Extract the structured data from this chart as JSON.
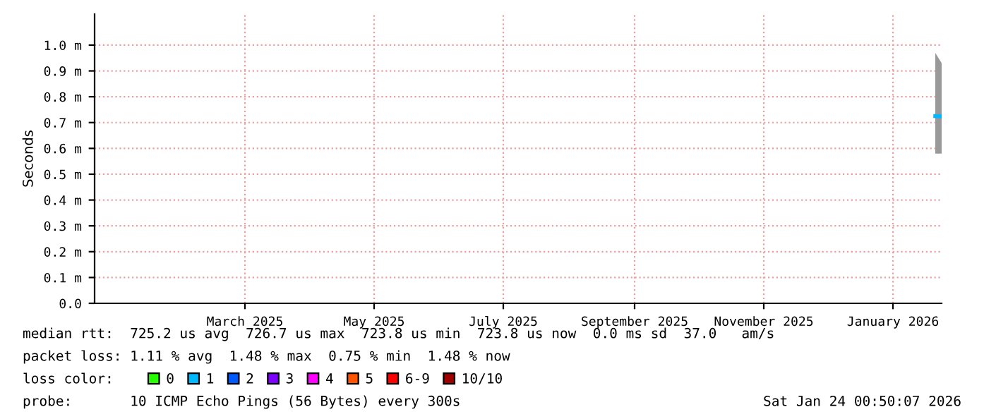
{
  "chart_data": {
    "type": "line",
    "ylabel": "Seconds",
    "xlim": [
      "2024-12-20",
      "2026-01-24"
    ],
    "xticks": [
      {
        "value": "2025-03-01",
        "label": "March 2025"
      },
      {
        "value": "2025-05-01",
        "label": "May 2025"
      },
      {
        "value": "2025-07-01",
        "label": "July 2025"
      },
      {
        "value": "2025-09-01",
        "label": "September 2025"
      },
      {
        "value": "2025-11-01",
        "label": "November 2025"
      },
      {
        "value": "2026-01-01",
        "label": "January 2026"
      }
    ],
    "ylim": [
      0,
      1.12
    ],
    "yticks": [
      {
        "value": 0,
        "label": "0.0"
      },
      {
        "value": 0.1,
        "label": "0.1 m"
      },
      {
        "value": 0.2,
        "label": "0.2 m"
      },
      {
        "value": 0.3,
        "label": "0.3 m"
      },
      {
        "value": 0.4,
        "label": "0.4 m"
      },
      {
        "value": 0.5,
        "label": "0.5 m"
      },
      {
        "value": 0.6,
        "label": "0.6 m"
      },
      {
        "value": 0.7,
        "label": "0.7 m"
      },
      {
        "value": 0.8,
        "label": "0.8 m"
      },
      {
        "value": 0.9,
        "label": "0.9 m"
      },
      {
        "value": 1.0,
        "label": "1.0 m"
      }
    ],
    "grid": true,
    "legend": "bottom",
    "legend_title": "loss color:",
    "series": [
      {
        "color": "#00b8ff",
        "x": [
          "2026-01-21",
          "2026-01-24"
        ],
        "values": [
          0.725,
          0.724
        ],
        "lower": [
          0.58,
          0.58
        ],
        "upper": [
          0.97,
          0.93
        ]
      },
      {
        "name": "0",
        "color": "#26ff00"
      },
      {
        "name": "1",
        "color": "#00b8ff"
      },
      {
        "name": "2",
        "color": "#0059ff"
      },
      {
        "name": "3",
        "color": "#7e00ff"
      },
      {
        "name": "4",
        "color": "#ff00ff"
      },
      {
        "name": "5",
        "color": "#ff5500"
      },
      {
        "name": "6-9",
        "color": "#ff0000"
      },
      {
        "name": "10/10",
        "color": "#a10000"
      }
    ],
    "annotations": [
      "median rtt:  725.2 us avg  726.7 us max  723.8 us min  723.8 us now  0.0 ms sd  37.0   am/s",
      "packet loss: 1.11 % avg  1.48 % max  0.75 % min  1.48 % now",
      "probe:       10 ICMP Echo Pings (56 Bytes) every 300s",
      "Sat Jan 24 00:50:07 2026"
    ]
  }
}
